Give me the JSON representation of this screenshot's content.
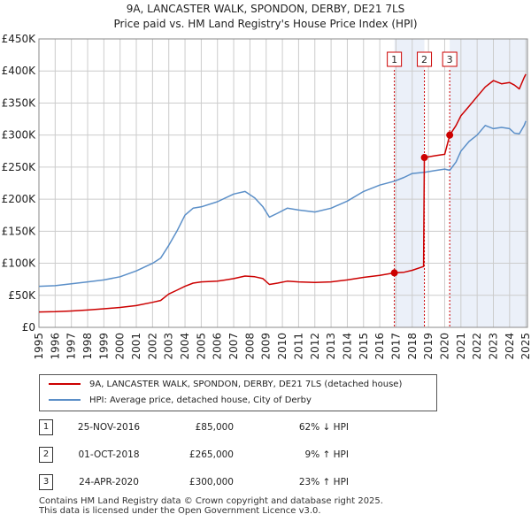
{
  "header": {
    "title_line1": "9A, LANCASTER WALK, SPONDON, DERBY, DE21 7LS",
    "title_line2": "Price paid vs. HM Land Registry's House Price Index (HPI)"
  },
  "chart_data": {
    "type": "line",
    "title": "9A, LANCASTER WALK, SPONDON, DERBY, DE21 7LS — Price paid vs. HM Land Registry's House Price Index (HPI)",
    "xlabel": "",
    "ylabel": "",
    "xlim": [
      1995,
      2025.1
    ],
    "ylim": [
      0,
      450000
    ],
    "x_ticks": [
      "1995",
      "1996",
      "1997",
      "1998",
      "1999",
      "2000",
      "2001",
      "2002",
      "2003",
      "2004",
      "2005",
      "2006",
      "2007",
      "2008",
      "2009",
      "2010",
      "2011",
      "2012",
      "2013",
      "2014",
      "2015",
      "2016",
      "2017",
      "2018",
      "2019",
      "2020",
      "2021",
      "2022",
      "2023",
      "2024",
      "2025"
    ],
    "y_ticks": [
      {
        "value": 0,
        "label": "£0"
      },
      {
        "value": 50000,
        "label": "£50K"
      },
      {
        "value": 100000,
        "label": "£100K"
      },
      {
        "value": 150000,
        "label": "£150K"
      },
      {
        "value": 200000,
        "label": "£200K"
      },
      {
        "value": 250000,
        "label": "£250K"
      },
      {
        "value": 300000,
        "label": "£300K"
      },
      {
        "value": 350000,
        "label": "£350K"
      },
      {
        "value": 400000,
        "label": "£400K"
      },
      {
        "value": 450000,
        "label": "£450K"
      }
    ],
    "grid": true,
    "shaded_periods": [
      [
        2016.9,
        2018.75
      ],
      [
        2020.31,
        2025.1
      ]
    ],
    "series": [
      {
        "name": "9A, LANCASTER WALK, SPONDON, DERBY, DE21 7LS (detached house)",
        "color": "#cc0000",
        "x": [
          1995.0,
          1996.0,
          1997.0,
          1998.0,
          1999.0,
          2000.0,
          2001.0,
          2002.0,
          2002.5,
          2003.0,
          2003.5,
          2004.0,
          2004.5,
          2005.0,
          2006.0,
          2007.0,
          2007.7,
          2008.3,
          2008.8,
          2009.2,
          2009.7,
          2010.3,
          2011.0,
          2012.0,
          2013.0,
          2014.0,
          2015.0,
          2016.0,
          2016.9,
          2017.5,
          2018.0,
          2018.7,
          2018.75,
          2019.0,
          2019.5,
          2020.0,
          2020.31,
          2020.7,
          2021.0,
          2021.5,
          2022.0,
          2022.5,
          2023.0,
          2023.5,
          2024.0,
          2024.3,
          2024.6,
          2024.9,
          2025.0
        ],
        "values": [
          24000,
          24500,
          25500,
          27000,
          29000,
          31000,
          34000,
          39000,
          42000,
          52000,
          58000,
          64000,
          69000,
          71000,
          72000,
          76000,
          80000,
          79000,
          76000,
          67000,
          69000,
          72000,
          71000,
          70000,
          71000,
          74000,
          78000,
          81000,
          85000,
          86000,
          89000,
          95000,
          265000,
          266000,
          268000,
          270000,
          300000,
          315000,
          330000,
          345000,
          360000,
          375000,
          385000,
          380000,
          382000,
          378000,
          372000,
          390000,
          395000
        ]
      },
      {
        "name": "HPI: Average price, detached house, City of Derby",
        "color": "#5b8fc8",
        "x": [
          1995.0,
          1996.0,
          1997.0,
          1998.0,
          1999.0,
          2000.0,
          2001.0,
          2002.0,
          2002.5,
          2003.0,
          2003.5,
          2004.0,
          2004.5,
          2005.0,
          2006.0,
          2007.0,
          2007.7,
          2008.3,
          2008.8,
          2009.2,
          2009.7,
          2010.3,
          2011.0,
          2012.0,
          2013.0,
          2014.0,
          2015.0,
          2016.0,
          2016.9,
          2017.5,
          2018.0,
          2018.75,
          2019.0,
          2019.5,
          2020.0,
          2020.31,
          2020.7,
          2021.0,
          2021.5,
          2022.0,
          2022.5,
          2023.0,
          2023.5,
          2024.0,
          2024.3,
          2024.6,
          2024.9,
          2025.0
        ],
        "values": [
          64000,
          65000,
          68000,
          71000,
          74000,
          79000,
          88000,
          100000,
          108000,
          128000,
          150000,
          175000,
          186000,
          188000,
          196000,
          208000,
          212000,
          202000,
          188000,
          172000,
          178000,
          186000,
          183000,
          180000,
          186000,
          197000,
          212000,
          222000,
          228000,
          234000,
          240000,
          242000,
          243000,
          245000,
          247000,
          245000,
          258000,
          275000,
          290000,
          300000,
          315000,
          310000,
          312000,
          310000,
          303000,
          302000,
          315000,
          322000
        ]
      }
    ],
    "markers": [
      {
        "label": "1",
        "x": 2016.9,
        "value": 85000
      },
      {
        "label": "2",
        "x": 2018.75,
        "value": 265000
      },
      {
        "label": "3",
        "x": 2020.31,
        "value": 300000
      }
    ]
  },
  "legend": {
    "items": [
      {
        "label": "9A, LANCASTER WALK, SPONDON, DERBY, DE21 7LS (detached house)",
        "color": "#cc0000"
      },
      {
        "label": "HPI: Average price, detached house, City of Derby",
        "color": "#5b8fc8"
      }
    ]
  },
  "transactions": [
    {
      "num": "1",
      "date": "25-NOV-2016",
      "price": "£85,000",
      "hpi": "62% ↓ HPI"
    },
    {
      "num": "2",
      "date": "01-OCT-2018",
      "price": "£265,000",
      "hpi": "9% ↑ HPI"
    },
    {
      "num": "3",
      "date": "24-APR-2020",
      "price": "£300,000",
      "hpi": "23% ↑ HPI"
    }
  ],
  "footer": {
    "line1": "Contains HM Land Registry data © Crown copyright and database right 2025.",
    "line2": "This data is licensed under the Open Government Licence v3.0."
  }
}
